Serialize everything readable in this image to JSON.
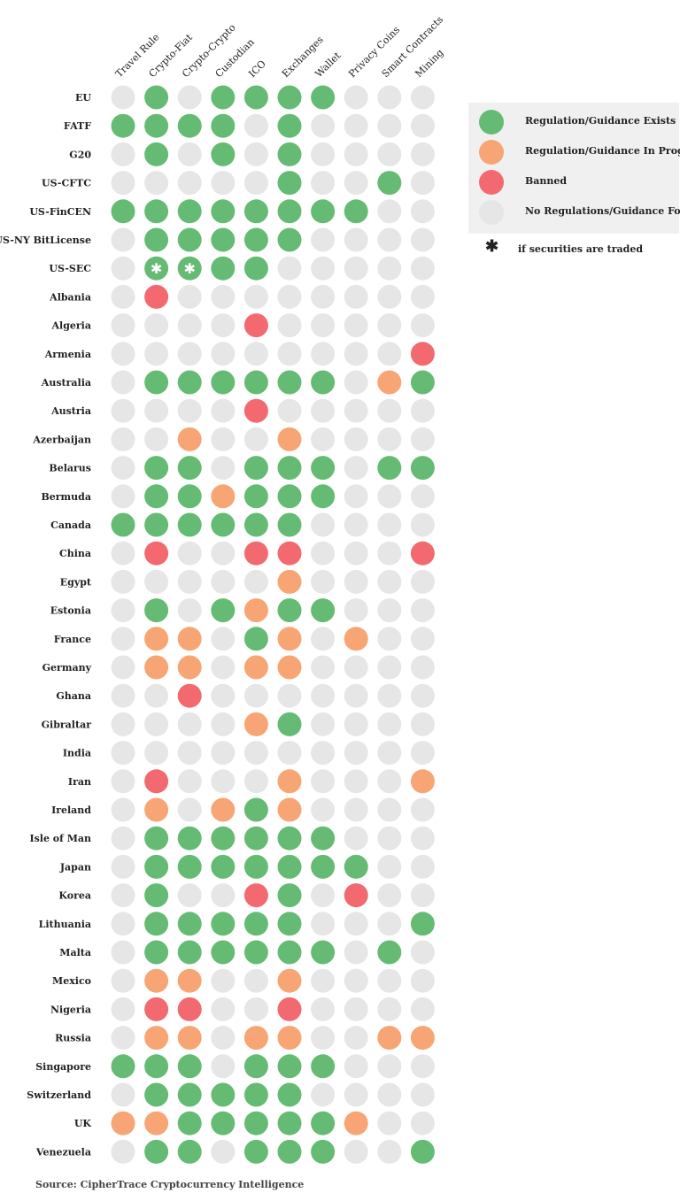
{
  "colors": {
    "exists": "#66bb74",
    "in_progress": "#f7a574",
    "banned": "#f26a6f",
    "none": "#e6e6e6"
  },
  "legend": [
    {
      "status": "exists",
      "label": "Regulation/Guidance Exists"
    },
    {
      "status": "in_progress",
      "label": "Regulation/Guidance In Progress"
    },
    {
      "status": "banned",
      "label": "Banned"
    },
    {
      "status": "none",
      "label": "No Regulations/Guidance Found"
    }
  ],
  "footnote": {
    "symbol": "✱",
    "text": "if securities are traded"
  },
  "source": "Source: CipherTrace Cryptocurrency Intelligence",
  "chart_data": {
    "type": "heatmap",
    "columns": [
      "Travel Rule",
      "Crypto-Fiat",
      "Crypto-Crypto",
      "Custodian",
      "ICO",
      "Exchanges",
      "Wallet",
      "Privacy Coins",
      "Smart Contracts",
      "Mining"
    ],
    "status_codes": {
      "G": "exists",
      "O": "in_progress",
      "R": "banned",
      "N": "none"
    },
    "asterisk_meaning": "if securities are traded",
    "rows": [
      {
        "name": "EU",
        "cells": [
          "N",
          "G",
          "N",
          "G",
          "G",
          "G",
          "G",
          "N",
          "N",
          "N"
        ]
      },
      {
        "name": "FATF",
        "cells": [
          "G",
          "G",
          "G",
          "G",
          "N",
          "G",
          "N",
          "N",
          "N",
          "N"
        ]
      },
      {
        "name": "G20",
        "cells": [
          "N",
          "G",
          "N",
          "G",
          "N",
          "G",
          "N",
          "N",
          "N",
          "N"
        ]
      },
      {
        "name": "US-CFTC",
        "cells": [
          "N",
          "N",
          "N",
          "N",
          "N",
          "G",
          "N",
          "N",
          "G",
          "N"
        ]
      },
      {
        "name": "US-FinCEN",
        "cells": [
          "G",
          "G",
          "G",
          "G",
          "G",
          "G",
          "G",
          "G",
          "N",
          "N"
        ]
      },
      {
        "name": "US-NY BitLicense",
        "cells": [
          "N",
          "G",
          "G",
          "G",
          "G",
          "G",
          "N",
          "N",
          "N",
          "N"
        ]
      },
      {
        "name": "US-SEC",
        "cells": [
          "N",
          "G",
          "G",
          "G",
          "G",
          "N",
          "N",
          "N",
          "N",
          "N"
        ],
        "asterisks": [
          1,
          2
        ]
      },
      {
        "name": "Albania",
        "cells": [
          "N",
          "R",
          "N",
          "N",
          "N",
          "N",
          "N",
          "N",
          "N",
          "N"
        ]
      },
      {
        "name": "Algeria",
        "cells": [
          "N",
          "N",
          "N",
          "N",
          "R",
          "N",
          "N",
          "N",
          "N",
          "N"
        ]
      },
      {
        "name": "Armenia",
        "cells": [
          "N",
          "N",
          "N",
          "N",
          "N",
          "N",
          "N",
          "N",
          "N",
          "R"
        ]
      },
      {
        "name": "Australia",
        "cells": [
          "N",
          "G",
          "G",
          "G",
          "G",
          "G",
          "G",
          "N",
          "O",
          "G"
        ]
      },
      {
        "name": "Austria",
        "cells": [
          "N",
          "N",
          "N",
          "N",
          "R",
          "N",
          "N",
          "N",
          "N",
          "N"
        ]
      },
      {
        "name": "Azerbaijan",
        "cells": [
          "N",
          "N",
          "O",
          "N",
          "N",
          "O",
          "N",
          "N",
          "N",
          "N"
        ]
      },
      {
        "name": "Belarus",
        "cells": [
          "N",
          "G",
          "G",
          "N",
          "G",
          "G",
          "G",
          "N",
          "G",
          "G"
        ]
      },
      {
        "name": "Bermuda",
        "cells": [
          "N",
          "G",
          "G",
          "O",
          "G",
          "G",
          "G",
          "N",
          "N",
          "N"
        ]
      },
      {
        "name": "Canada",
        "cells": [
          "G",
          "G",
          "G",
          "G",
          "G",
          "G",
          "N",
          "N",
          "N",
          "N"
        ]
      },
      {
        "name": "China",
        "cells": [
          "N",
          "R",
          "N",
          "N",
          "R",
          "R",
          "N",
          "N",
          "N",
          "R"
        ]
      },
      {
        "name": "Egypt",
        "cells": [
          "N",
          "N",
          "N",
          "N",
          "N",
          "O",
          "N",
          "N",
          "N",
          "N"
        ]
      },
      {
        "name": "Estonia",
        "cells": [
          "N",
          "G",
          "N",
          "G",
          "O",
          "G",
          "G",
          "N",
          "N",
          "N"
        ]
      },
      {
        "name": "France",
        "cells": [
          "N",
          "O",
          "O",
          "N",
          "G",
          "O",
          "N",
          "O",
          "N",
          "N"
        ]
      },
      {
        "name": "Germany",
        "cells": [
          "N",
          "O",
          "O",
          "N",
          "O",
          "O",
          "N",
          "N",
          "N",
          "N"
        ]
      },
      {
        "name": "Ghana",
        "cells": [
          "N",
          "N",
          "R",
          "N",
          "N",
          "N",
          "N",
          "N",
          "N",
          "N"
        ]
      },
      {
        "name": "Gibraltar",
        "cells": [
          "N",
          "N",
          "N",
          "N",
          "O",
          "G",
          "N",
          "N",
          "N",
          "N"
        ]
      },
      {
        "name": "India",
        "cells": [
          "N",
          "N",
          "N",
          "N",
          "N",
          "N",
          "N",
          "N",
          "N",
          "N"
        ]
      },
      {
        "name": "Iran",
        "cells": [
          "N",
          "R",
          "N",
          "N",
          "N",
          "O",
          "N",
          "N",
          "N",
          "O"
        ]
      },
      {
        "name": "Ireland",
        "cells": [
          "N",
          "O",
          "N",
          "O",
          "G",
          "O",
          "N",
          "N",
          "N",
          "N"
        ]
      },
      {
        "name": "Isle of Man",
        "cells": [
          "N",
          "G",
          "G",
          "G",
          "G",
          "G",
          "G",
          "N",
          "N",
          "N"
        ]
      },
      {
        "name": "Japan",
        "cells": [
          "N",
          "G",
          "G",
          "G",
          "G",
          "G",
          "G",
          "G",
          "N",
          "N"
        ]
      },
      {
        "name": "Korea",
        "cells": [
          "N",
          "G",
          "N",
          "N",
          "R",
          "G",
          "N",
          "R",
          "N",
          "N"
        ]
      },
      {
        "name": "Lithuania",
        "cells": [
          "N",
          "G",
          "G",
          "G",
          "G",
          "G",
          "N",
          "N",
          "N",
          "G"
        ]
      },
      {
        "name": "Malta",
        "cells": [
          "N",
          "G",
          "G",
          "G",
          "G",
          "G",
          "G",
          "N",
          "G",
          "N"
        ]
      },
      {
        "name": "Mexico",
        "cells": [
          "N",
          "O",
          "O",
          "N",
          "N",
          "O",
          "N",
          "N",
          "N",
          "N"
        ]
      },
      {
        "name": "Nigeria",
        "cells": [
          "N",
          "R",
          "R",
          "N",
          "N",
          "R",
          "N",
          "N",
          "N",
          "N"
        ]
      },
      {
        "name": "Russia",
        "cells": [
          "N",
          "O",
          "O",
          "N",
          "O",
          "O",
          "N",
          "N",
          "O",
          "O"
        ]
      },
      {
        "name": "Singapore",
        "cells": [
          "G",
          "G",
          "G",
          "N",
          "G",
          "G",
          "G",
          "N",
          "N",
          "N"
        ]
      },
      {
        "name": "Switzerland",
        "cells": [
          "N",
          "G",
          "G",
          "G",
          "G",
          "G",
          "N",
          "N",
          "N",
          "N"
        ]
      },
      {
        "name": "UK",
        "cells": [
          "O",
          "O",
          "G",
          "G",
          "G",
          "G",
          "G",
          "O",
          "N",
          "N"
        ]
      },
      {
        "name": "Venezuela",
        "cells": [
          "N",
          "G",
          "G",
          "N",
          "G",
          "G",
          "G",
          "N",
          "N",
          "G"
        ]
      }
    ]
  }
}
